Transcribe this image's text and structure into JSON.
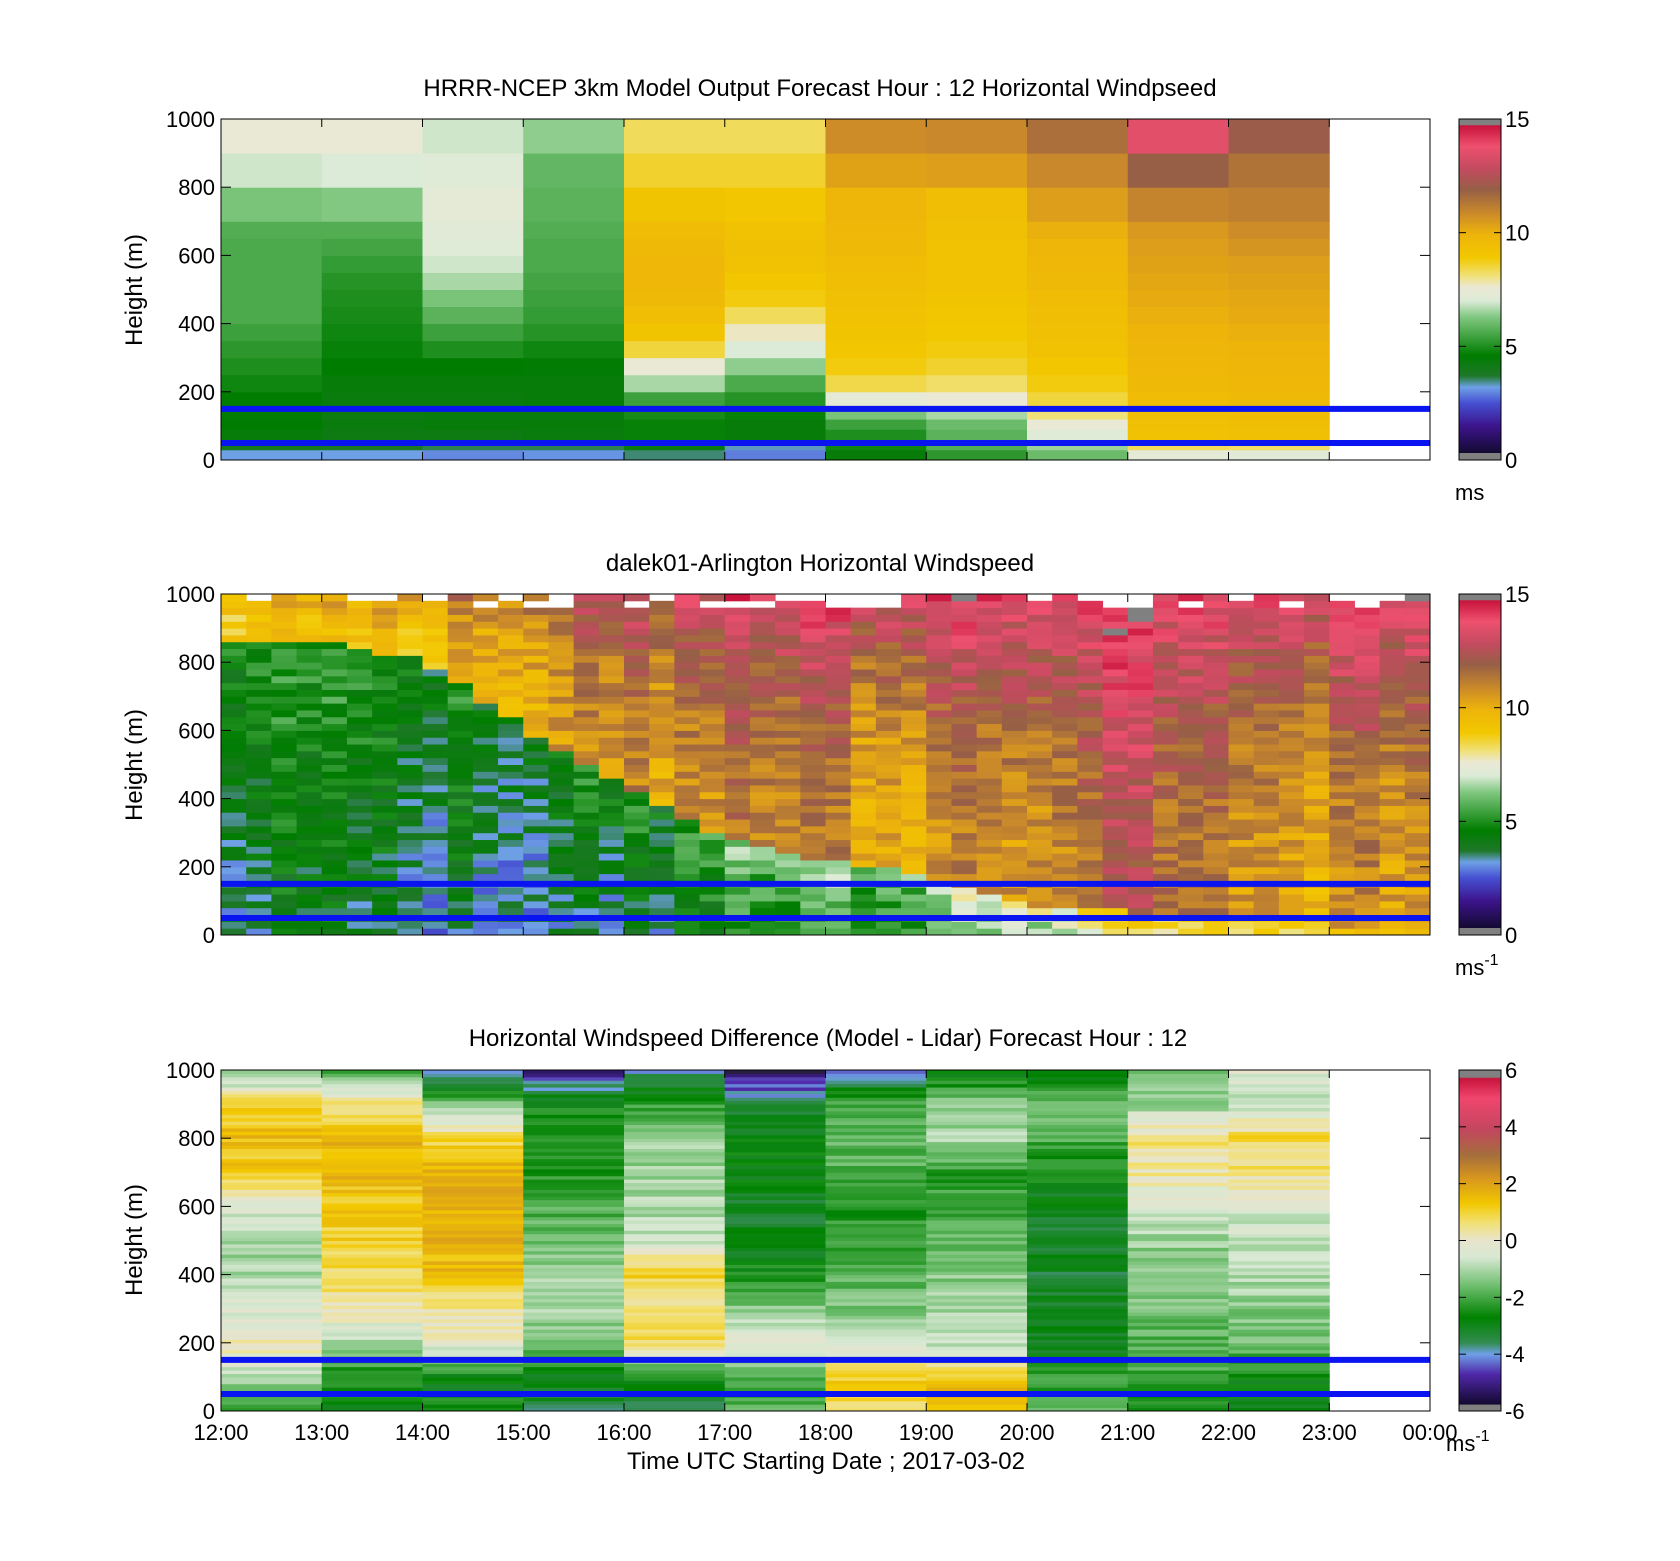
{
  "figure": {
    "x_ticks": [
      "12:00",
      "13:00",
      "14:00",
      "15:00",
      "16:00",
      "17:00",
      "18:00",
      "19:00",
      "20:00",
      "21:00",
      "22:00",
      "23:00",
      "00:00"
    ],
    "x_label": "Time UTC  Starting Date ; 2017-03-02"
  },
  "chart_data": [
    {
      "type": "heatmap",
      "title": "HRRR-NCEP 3km Model Output   Forecast Hour : 12 Horizontal Windpseed",
      "ylabel": "Height (m)",
      "ylim": [
        0,
        1000
      ],
      "yticks": [
        0,
        200,
        400,
        600,
        800,
        1000
      ],
      "xlim_hours": [
        12,
        24
      ],
      "colorbar": {
        "range": [
          0,
          15
        ],
        "ticks": [
          0,
          5,
          10,
          15
        ],
        "unit": "ms"
      },
      "reference_lines_m": [
        150,
        50
      ],
      "columns_hour": [
        12,
        13,
        14,
        15,
        16,
        17,
        18,
        19,
        20,
        21,
        22
      ],
      "column_width_h": 1,
      "levels_m": [
        0,
        30,
        60,
        90,
        120,
        160,
        200,
        250,
        300,
        350,
        400,
        450,
        500,
        550,
        600,
        650,
        700,
        800,
        900
      ],
      "level_tops_m": [
        30,
        60,
        90,
        120,
        160,
        200,
        250,
        300,
        350,
        400,
        450,
        500,
        550,
        600,
        650,
        700,
        800,
        900,
        1000
      ],
      "values": [
        [
          3.2,
          4.0,
          4.4,
          4.6,
          4.5,
          4.6,
          4.8,
          5.0,
          5.2,
          5.4,
          5.6,
          5.6,
          5.6,
          5.6,
          5.6,
          5.7,
          6.2,
          6.9,
          7.5
        ],
        [
          3.2,
          3.8,
          4.2,
          4.3,
          4.2,
          4.3,
          4.4,
          4.6,
          4.7,
          4.8,
          4.9,
          5.0,
          5.1,
          5.3,
          5.5,
          5.7,
          6.3,
          7.0,
          7.5
        ],
        [
          3.0,
          3.6,
          4.2,
          4.4,
          4.3,
          4.3,
          4.4,
          4.6,
          5.0,
          5.4,
          5.8,
          6.2,
          6.6,
          6.9,
          7.1,
          7.2,
          7.3,
          7.1,
          6.9
        ],
        [
          3.1,
          3.6,
          4.3,
          4.4,
          4.3,
          4.4,
          4.4,
          4.5,
          4.8,
          5.1,
          5.3,
          5.4,
          5.5,
          5.6,
          5.6,
          5.7,
          5.8,
          5.9,
          6.4
        ],
        [
          3.5,
          4.3,
          4.7,
          4.7,
          4.9,
          5.4,
          6.6,
          7.5,
          8.5,
          9.1,
          9.4,
          9.6,
          9.7,
          9.7,
          9.6,
          9.5,
          9.1,
          8.6,
          8.3
        ],
        [
          2.9,
          3.3,
          4.4,
          4.4,
          4.7,
          5.1,
          5.6,
          6.4,
          7.0,
          7.7,
          8.3,
          8.8,
          9.0,
          9.2,
          9.3,
          9.2,
          9.0,
          8.6,
          8.3
        ],
        [
          4.4,
          4.8,
          5.0,
          5.4,
          6.2,
          7.3,
          8.4,
          8.8,
          9.0,
          9.1,
          9.2,
          9.3,
          9.4,
          9.5,
          9.6,
          9.7,
          9.8,
          10.3,
          10.8
        ],
        [
          5.2,
          5.7,
          5.8,
          6.0,
          6.6,
          7.6,
          8.2,
          8.6,
          8.8,
          8.9,
          9.0,
          9.1,
          9.2,
          9.2,
          9.2,
          9.3,
          9.4,
          10.4,
          10.9
        ],
        [
          6.0,
          6.5,
          7.1,
          7.5,
          8.1,
          8.5,
          8.8,
          9.0,
          9.2,
          9.3,
          9.4,
          9.5,
          9.6,
          9.7,
          9.8,
          10.0,
          10.4,
          10.9,
          11.5
        ],
        [
          7.3,
          8.3,
          9.2,
          9.3,
          9.4,
          9.5,
          9.6,
          9.7,
          9.8,
          9.9,
          10.0,
          10.1,
          10.2,
          10.3,
          10.4,
          10.5,
          11.0,
          11.9,
          13.5
        ],
        [
          7.2,
          8.2,
          9.3,
          9.4,
          9.5,
          9.6,
          9.7,
          9.8,
          9.9,
          10.0,
          10.1,
          10.2,
          10.3,
          10.4,
          10.6,
          10.8,
          11.1,
          11.4,
          12.0
        ]
      ]
    },
    {
      "type": "heatmap",
      "title": "dalek01-Arlington  Horizontal Windspeed",
      "ylabel": "Height (m)",
      "ylim": [
        0,
        1000
      ],
      "yticks": [
        0,
        200,
        400,
        600,
        800,
        1000
      ],
      "xlim_hours": [
        12,
        24
      ],
      "colorbar": {
        "range": [
          0,
          15
        ],
        "ticks": [
          0,
          5,
          10,
          15
        ],
        "unit": "ms",
        "unit_exp": "-1"
      },
      "reference_lines_m": [
        150,
        50
      ],
      "time_range_h": [
        12,
        23.85
      ],
      "column_width_h": 0.25,
      "level_height_m": 20,
      "profile_hour_ticks": [
        12,
        13,
        14,
        15,
        16,
        17,
        18,
        19,
        20,
        21,
        22,
        23,
        24
      ],
      "surface_speed_by_hour": [
        3.8,
        3.8,
        3.5,
        3.0,
        3.4,
        4.5,
        4.8,
        5.2,
        6.6,
        7.6,
        8.6,
        9.4,
        9.8
      ],
      "layer_top_m_by_hour": [
        850,
        850,
        800,
        600,
        420,
        270,
        210,
        170,
        80,
        60,
        50,
        50,
        50
      ],
      "upper_speed_by_hour": [
        9.0,
        9.2,
        9.5,
        10.0,
        10.6,
        10.8,
        10.6,
        10.2,
        10.8,
        12.0,
        11.3,
        10.4,
        10.2
      ],
      "top_speed_by_hour": [
        9.5,
        10.0,
        10.8,
        11.5,
        12.8,
        13.4,
        13.6,
        13.5,
        14.0,
        14.2,
        14.1,
        14.0,
        13.8
      ]
    },
    {
      "type": "heatmap",
      "title": "Horizontal Windspeed Difference (Model - Lidar) Forecast Hour : 12",
      "ylabel": "Height (m)",
      "xlabel": "Time UTC  Starting Date ; 2017-03-02",
      "ylim": [
        0,
        1000
      ],
      "yticks": [
        0,
        200,
        400,
        600,
        800,
        1000
      ],
      "xlim_hours": [
        12,
        24
      ],
      "colorbar": {
        "range": [
          -6,
          6
        ],
        "ticks": [
          -6,
          -4,
          -2,
          0,
          2,
          4,
          6
        ],
        "unit": "ms",
        "unit_exp": "-1"
      },
      "reference_lines_m": [
        150,
        50
      ],
      "columns_hour": [
        12,
        13,
        14,
        15,
        16,
        17,
        18,
        19,
        20,
        21,
        22
      ],
      "column_width_h": 1,
      "level_height_m": 10,
      "profile_heights_m": [
        0,
        100,
        200,
        300,
        400,
        500,
        600,
        700,
        800,
        900,
        1000
      ],
      "profiles": [
        [
          -2.5,
          -1.0,
          0.3,
          -0.5,
          -1.0,
          -1.1,
          -0.4,
          1.2,
          1.4,
          1.0,
          -1.8
        ],
        [
          -2.8,
          -2.6,
          -1.0,
          0.3,
          0.7,
          1.0,
          1.3,
          1.5,
          1.6,
          0.6,
          -2.0
        ],
        [
          -2.6,
          -2.8,
          0.0,
          0.4,
          1.4,
          1.6,
          1.7,
          1.8,
          0.9,
          -1.4,
          -4.4
        ],
        [
          -3.4,
          -2.8,
          -1.6,
          -1.0,
          -1.2,
          -1.5,
          -2.0,
          -2.4,
          -2.4,
          -2.6,
          -5.0
        ],
        [
          -3.8,
          -2.6,
          0.8,
          0.4,
          1.1,
          -0.7,
          -1.0,
          -1.2,
          -1.2,
          -2.2,
          -4.0
        ],
        [
          -1.8,
          -2.2,
          -0.4,
          -1.4,
          -2.4,
          -3.1,
          -3.1,
          -2.8,
          -2.6,
          -3.6,
          -5.4
        ],
        [
          0.8,
          1.2,
          -0.8,
          -1.4,
          -1.8,
          -2.2,
          -2.4,
          -2.0,
          -1.6,
          -2.0,
          -4.2
        ],
        [
          1.6,
          1.4,
          -0.8,
          -1.0,
          -1.4,
          -1.8,
          -2.2,
          -2.2,
          -1.0,
          -1.4,
          -3.0
        ],
        [
          -1.8,
          -2.3,
          -3.0,
          -3.1,
          -3.2,
          -3.2,
          -3.0,
          -2.6,
          -2.0,
          -1.4,
          -3.1
        ],
        [
          -2.6,
          -2.1,
          -1.8,
          -1.6,
          -1.4,
          -1.2,
          -0.6,
          0.3,
          0.5,
          -1.2,
          -1.6
        ],
        [
          -3.0,
          -2.7,
          -1.6,
          -1.3,
          -1.0,
          -0.8,
          -0.5,
          0.5,
          0.9,
          -0.8,
          -0.4
        ]
      ]
    }
  ]
}
